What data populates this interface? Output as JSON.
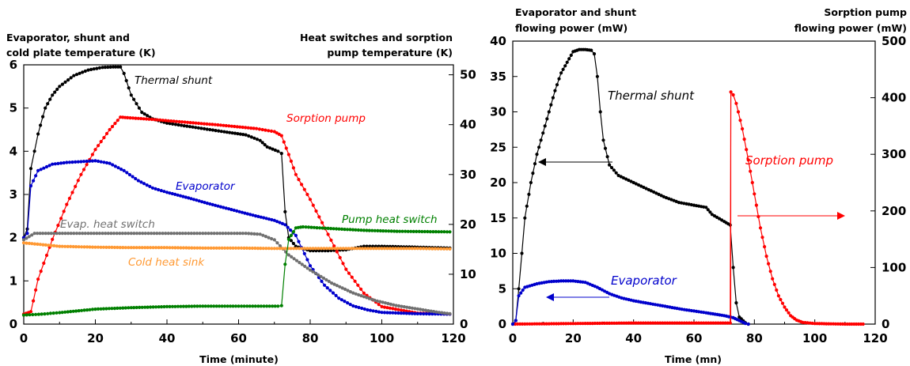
{
  "chart_data": [
    {
      "type": "line",
      "xlabel": "Time (minute)",
      "ylabel_left": [
        "Evaporator, shunt and",
        "cold plate temperature (K)"
      ],
      "ylabel_right": [
        "Heat switches and sorption",
        "pump temperature (K)"
      ],
      "xlim": [
        0,
        120
      ],
      "ylim_left": [
        0,
        6
      ],
      "ylim_right": [
        0,
        52
      ],
      "x_ticks": [
        "0",
        "20",
        "40",
        "60",
        "80",
        "100",
        "120"
      ],
      "y_left_ticks": [
        "0",
        "1",
        "2",
        "3",
        "4",
        "5",
        "6"
      ],
      "y_right_ticks": [
        "0",
        "10",
        "20",
        "30",
        "40",
        "50"
      ],
      "series": [
        {
          "name": "Thermal shunt",
          "axis": "left",
          "color": "#000000",
          "points": [
            [
              0,
              2.0
            ],
            [
              1,
              2.2
            ],
            [
              2,
              3.6
            ],
            [
              3,
              4.0
            ],
            [
              4,
              4.4
            ],
            [
              6,
              5.0
            ],
            [
              8,
              5.3
            ],
            [
              10,
              5.5
            ],
            [
              14,
              5.75
            ],
            [
              18,
              5.88
            ],
            [
              22,
              5.94
            ],
            [
              25,
              5.95
            ],
            [
              27,
              5.95
            ],
            [
              28,
              5.8
            ],
            [
              30,
              5.3
            ],
            [
              33,
              4.9
            ],
            [
              36,
              4.75
            ],
            [
              40,
              4.65
            ],
            [
              48,
              4.55
            ],
            [
              56,
              4.45
            ],
            [
              62,
              4.38
            ],
            [
              66,
              4.25
            ],
            [
              68,
              4.1
            ],
            [
              71,
              4.0
            ],
            [
              72,
              3.95
            ],
            [
              73,
              2.6
            ],
            [
              74,
              2.0
            ],
            [
              76,
              1.8
            ],
            [
              80,
              1.7
            ],
            [
              85,
              1.7
            ],
            [
              90,
              1.72
            ],
            [
              95,
              1.8
            ],
            [
              100,
              1.8
            ],
            [
              110,
              1.78
            ],
            [
              119,
              1.76
            ]
          ]
        },
        {
          "name": "Sorption pump",
          "axis": "right",
          "color": "#ff0000",
          "points": [
            [
              0,
              2.0
            ],
            [
              2,
              2.5
            ],
            [
              4,
              9
            ],
            [
              8,
              17
            ],
            [
              12,
              24
            ],
            [
              16,
              30
            ],
            [
              20,
              35
            ],
            [
              24,
              39
            ],
            [
              27,
              41.5
            ],
            [
              29,
              41.4
            ],
            [
              35,
              41.1
            ],
            [
              45,
              40.5
            ],
            [
              55,
              39.9
            ],
            [
              65,
              39.2
            ],
            [
              70,
              38.6
            ],
            [
              72,
              37.8
            ],
            [
              74,
              34
            ],
            [
              76,
              30
            ],
            [
              80,
              25
            ],
            [
              85,
              18
            ],
            [
              90,
              11
            ],
            [
              95,
              6.2
            ],
            [
              100,
              3.5
            ],
            [
              110,
              2.2
            ],
            [
              119,
              2.0
            ]
          ]
        },
        {
          "name": "Evaporator",
          "axis": "left",
          "color": "#0000cc",
          "points": [
            [
              0,
              2.0
            ],
            [
              1,
              2.1
            ],
            [
              2,
              3.2
            ],
            [
              4,
              3.55
            ],
            [
              8,
              3.7
            ],
            [
              12,
              3.74
            ],
            [
              16,
              3.76
            ],
            [
              20,
              3.78
            ],
            [
              24,
              3.72
            ],
            [
              28,
              3.55
            ],
            [
              32,
              3.32
            ],
            [
              36,
              3.15
            ],
            [
              40,
              3.05
            ],
            [
              46,
              2.92
            ],
            [
              52,
              2.78
            ],
            [
              58,
              2.65
            ],
            [
              64,
              2.52
            ],
            [
              70,
              2.4
            ],
            [
              73,
              2.3
            ],
            [
              76,
              2.05
            ],
            [
              80,
              1.35
            ],
            [
              84,
              0.9
            ],
            [
              88,
              0.6
            ],
            [
              92,
              0.42
            ],
            [
              96,
              0.33
            ],
            [
              100,
              0.27
            ],
            [
              110,
              0.24
            ],
            [
              119,
              0.23
            ]
          ]
        },
        {
          "name": "Evap. heat switch",
          "axis": "left",
          "color": "#707070",
          "points": [
            [
              0,
              1.95
            ],
            [
              3,
              2.1
            ],
            [
              10,
              2.1
            ],
            [
              30,
              2.1
            ],
            [
              50,
              2.1
            ],
            [
              62,
              2.1
            ],
            [
              66,
              2.08
            ],
            [
              70,
              1.95
            ],
            [
              74,
              1.6
            ],
            [
              80,
              1.25
            ],
            [
              86,
              0.95
            ],
            [
              92,
              0.72
            ],
            [
              98,
              0.55
            ],
            [
              104,
              0.43
            ],
            [
              110,
              0.35
            ],
            [
              116,
              0.27
            ],
            [
              119,
              0.24
            ]
          ]
        },
        {
          "name": "Cold heat sink",
          "axis": "left",
          "color": "#ff9933",
          "points": [
            [
              0,
              1.88
            ],
            [
              10,
              1.8
            ],
            [
              20,
              1.78
            ],
            [
              30,
              1.77
            ],
            [
              40,
              1.77
            ],
            [
              50,
              1.76
            ],
            [
              60,
              1.76
            ],
            [
              70,
              1.75
            ],
            [
              80,
              1.75
            ],
            [
              90,
              1.75
            ],
            [
              100,
              1.75
            ],
            [
              110,
              1.75
            ],
            [
              119,
              1.74
            ]
          ]
        },
        {
          "name": "Pump heat switch",
          "axis": "right",
          "color": "#008000",
          "points": [
            [
              0,
              1.8
            ],
            [
              5,
              2.0
            ],
            [
              10,
              2.3
            ],
            [
              20,
              3.0
            ],
            [
              30,
              3.3
            ],
            [
              40,
              3.5
            ],
            [
              50,
              3.6
            ],
            [
              60,
              3.6
            ],
            [
              71,
              3.6
            ],
            [
              72,
              3.7
            ],
            [
              73,
              12
            ],
            [
              74,
              17
            ],
            [
              76,
              19.3
            ],
            [
              78,
              19.5
            ],
            [
              85,
              19.2
            ],
            [
              95,
              18.8
            ],
            [
              105,
              18.6
            ],
            [
              119,
              18.5
            ]
          ]
        }
      ],
      "annotations": [
        "Thermal shunt",
        "Sorption pump",
        "Evaporator",
        "Evap. heat switch",
        "Pump heat switch",
        "Cold heat sink"
      ]
    },
    {
      "type": "line",
      "xlabel": "Time (mn)",
      "ylabel_left": [
        "Evaporator and shunt",
        "flowing power (mW)"
      ],
      "ylabel_right": [
        "Sorption pump",
        "flowing power (mW)"
      ],
      "xlim": [
        0,
        120
      ],
      "ylim_left": [
        0,
        40
      ],
      "ylim_right": [
        0,
        500
      ],
      "x_ticks": [
        "0",
        "20",
        "40",
        "60",
        "80",
        "100",
        "120"
      ],
      "y_left_ticks": [
        "0",
        "5",
        "10",
        "15",
        "20",
        "25",
        "30",
        "35",
        "40"
      ],
      "y_right_ticks": [
        "0",
        "100",
        "200",
        "300",
        "400",
        "500"
      ],
      "series": [
        {
          "name": "Thermal shunt",
          "axis": "left",
          "color": "#000000",
          "points": [
            [
              0,
              0
            ],
            [
              1,
              0.5
            ],
            [
              2,
              5
            ],
            [
              3,
              10
            ],
            [
              4,
              15
            ],
            [
              6,
              20
            ],
            [
              8,
              24
            ],
            [
              10,
              27
            ],
            [
              12,
              30
            ],
            [
              14,
              33
            ],
            [
              16,
              35.5
            ],
            [
              18,
              37
            ],
            [
              20,
              38.5
            ],
            [
              22,
              38.8
            ],
            [
              24,
              38.8
            ],
            [
              26,
              38.7
            ],
            [
              27,
              38.2
            ],
            [
              28,
              35
            ],
            [
              29,
              30
            ],
            [
              30,
              26
            ],
            [
              32,
              22.5
            ],
            [
              35,
              21
            ],
            [
              40,
              20
            ],
            [
              45,
              19
            ],
            [
              50,
              18
            ],
            [
              55,
              17.2
            ],
            [
              60,
              16.8
            ],
            [
              64,
              16.5
            ],
            [
              66,
              15.5
            ],
            [
              70,
              14.5
            ],
            [
              72,
              14.0
            ],
            [
              73,
              8
            ],
            [
              74,
              3
            ],
            [
              75,
              1
            ],
            [
              77,
              0.2
            ],
            [
              78,
              0
            ]
          ]
        },
        {
          "name": "Sorption pump",
          "axis": "right",
          "color": "#ff0000",
          "points": [
            [
              0,
              0
            ],
            [
              20,
              1
            ],
            [
              40,
              2
            ],
            [
              60,
              2
            ],
            [
              72,
              2
            ],
            [
              72.2,
              410
            ],
            [
              73,
              405
            ],
            [
              74,
              390
            ],
            [
              76,
              345
            ],
            [
              78,
              290
            ],
            [
              80,
              230
            ],
            [
              82,
              170
            ],
            [
              84,
              120
            ],
            [
              86,
              80
            ],
            [
              88,
              50
            ],
            [
              90,
              30
            ],
            [
              92,
              15
            ],
            [
              94,
              7
            ],
            [
              96,
              3
            ],
            [
              100,
              1
            ],
            [
              110,
              0
            ],
            [
              116,
              0
            ]
          ]
        },
        {
          "name": "Evaporator",
          "axis": "left",
          "color": "#0000cc",
          "points": [
            [
              0,
              0
            ],
            [
              1,
              0.5
            ],
            [
              2,
              4
            ],
            [
              4,
              5.2
            ],
            [
              8,
              5.7
            ],
            [
              12,
              6.0
            ],
            [
              16,
              6.1
            ],
            [
              20,
              6.1
            ],
            [
              24,
              5.9
            ],
            [
              28,
              5.2
            ],
            [
              32,
              4.3
            ],
            [
              36,
              3.7
            ],
            [
              40,
              3.3
            ],
            [
              48,
              2.7
            ],
            [
              56,
              2.1
            ],
            [
              64,
              1.6
            ],
            [
              70,
              1.2
            ],
            [
              73,
              0.9
            ],
            [
              75,
              0.5
            ],
            [
              77,
              0.1
            ],
            [
              78,
              0
            ]
          ]
        }
      ],
      "annotations": [
        "Thermal shunt",
        "Evaporator",
        "Sorption pump"
      ]
    }
  ]
}
